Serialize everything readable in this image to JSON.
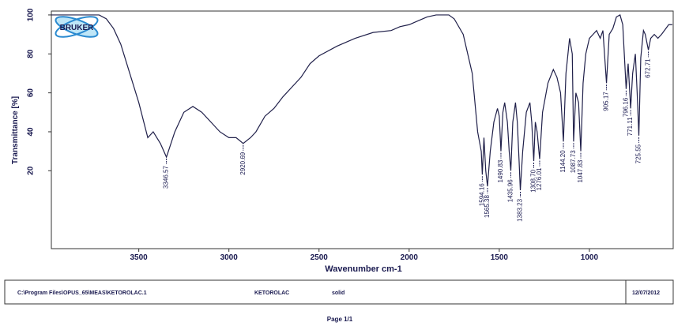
{
  "chart_data": {
    "type": "line",
    "logo": "BRUKER",
    "x_label": "Wavenumber cm-1",
    "y_label": "Transmittance [%]",
    "x": [
      3985,
      3900,
      3800,
      3720,
      3680,
      3640,
      3600,
      3550,
      3500,
      3450,
      3420,
      3380,
      3346.57,
      3300,
      3250,
      3200,
      3150,
      3100,
      3050,
      3000,
      2960,
      2920.69,
      2880,
      2850,
      2800,
      2750,
      2700,
      2650,
      2600,
      2550,
      2500,
      2400,
      2300,
      2200,
      2100,
      2050,
      2000,
      1950,
      1900,
      1850,
      1780,
      1750,
      1700,
      1650,
      1620,
      1610,
      1600,
      1594.16,
      1585,
      1575,
      1565.38,
      1550,
      1530,
      1510,
      1500,
      1490.83,
      1480,
      1470,
      1455,
      1445,
      1435.96,
      1425,
      1410,
      1400,
      1390,
      1383.23,
      1370,
      1350,
      1330,
      1320,
      1308.7,
      1300,
      1290,
      1276.01,
      1260,
      1230,
      1200,
      1180,
      1160,
      1144.2,
      1130,
      1110,
      1095,
      1087.73,
      1075,
      1060,
      1047.83,
      1035,
      1020,
      1000,
      980,
      960,
      940,
      925,
      905.17,
      890,
      870,
      850,
      830,
      815,
      796.16,
      785,
      771.11,
      760,
      745,
      735,
      725.55,
      715,
      700,
      690,
      672.71,
      660,
      640,
      620,
      600,
      560,
      540
    ],
    "series": [
      {
        "color": "#20204a",
        "values": [
          100,
          100,
          100,
          100,
          98,
          93,
          85,
          70,
          55,
          37,
          40,
          34,
          27,
          40,
          50,
          53,
          50,
          45,
          40,
          37,
          37,
          34,
          37,
          40,
          48,
          52,
          58,
          63,
          68,
          75,
          79,
          84,
          88,
          91,
          92,
          94,
          95,
          97,
          99,
          100,
          100,
          98,
          90,
          70,
          40,
          35,
          30,
          18,
          37,
          20,
          12,
          30,
          45,
          52,
          48,
          30,
          50,
          55,
          45,
          30,
          20,
          45,
          55,
          45,
          25,
          10,
          30,
          50,
          55,
          45,
          25,
          45,
          40,
          26,
          50,
          65,
          72,
          68,
          60,
          35,
          70,
          88,
          80,
          35,
          60,
          55,
          30,
          65,
          80,
          88,
          90,
          92,
          88,
          92,
          65,
          90,
          93,
          99,
          100,
          95,
          62,
          75,
          52,
          70,
          80,
          60,
          38,
          78,
          92,
          90,
          82,
          88,
          90,
          88,
          90,
          95,
          95
        ]
      }
    ],
    "xlim": [
      3985,
      535
    ],
    "ylim": [
      -20,
      102
    ],
    "xticks": [
      3500,
      3000,
      2500,
      2000,
      1500,
      1000
    ],
    "yticks": [
      20,
      40,
      60,
      80,
      100
    ],
    "annotations": [
      {
        "x": 3346.57,
        "y": 27,
        "label": "3346.57"
      },
      {
        "x": 2920.69,
        "y": 34,
        "label": "2920.69"
      },
      {
        "x": 1594.16,
        "y": 18,
        "label": "1594.16"
      },
      {
        "x": 1565.38,
        "y": 12,
        "label": "1565.38"
      },
      {
        "x": 1490.83,
        "y": 30,
        "label": "1490.83"
      },
      {
        "x": 1435.96,
        "y": 20,
        "label": "1435.96"
      },
      {
        "x": 1383.23,
        "y": 10,
        "label": "1383.23"
      },
      {
        "x": 1308.7,
        "y": 25,
        "label": "1308.70"
      },
      {
        "x": 1276.01,
        "y": 26,
        "label": "1276.01"
      },
      {
        "x": 1144.2,
        "y": 35,
        "label": "1144.20"
      },
      {
        "x": 1087.73,
        "y": 35,
        "label": "1087.73"
      },
      {
        "x": 1047.83,
        "y": 30,
        "label": "1047.83"
      },
      {
        "x": 905.17,
        "y": 65,
        "label": "905.17"
      },
      {
        "x": 796.16,
        "y": 62,
        "label": "796.16"
      },
      {
        "x": 771.11,
        "y": 52,
        "label": "771.11"
      },
      {
        "x": 725.55,
        "y": 38,
        "label": "725.55"
      },
      {
        "x": 672.71,
        "y": 82,
        "label": "672.71"
      }
    ]
  },
  "footer": {
    "file": "C:\\Program Files\\OPUS_65\\MEAS\\KETOROLAC.1",
    "sample": "KETOROLAC",
    "form": "solid",
    "date": "12/07/2012",
    "page": "Page 1/1"
  }
}
